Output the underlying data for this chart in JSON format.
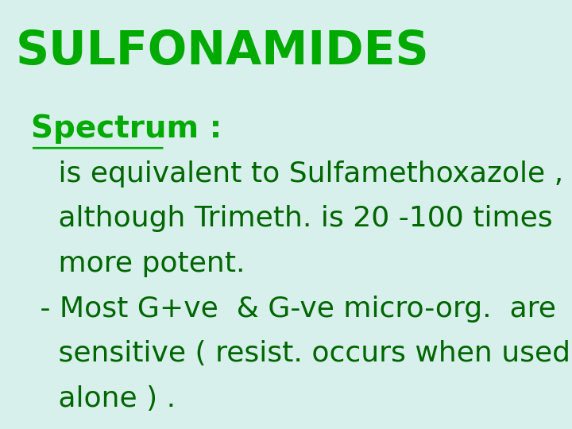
{
  "title": "SULFONAMIDES",
  "title_color": "#00aa00",
  "title_fontsize": 42,
  "background_color": "#d8f0ec",
  "spectrum_label": "Spectrum :",
  "spectrum_color": "#00aa00",
  "spectrum_fontsize": 28,
  "body_color": "#006600",
  "body_fontsize": 26,
  "line1": "   is equivalent to Sulfamethoxazole ,",
  "line2": "   although Trimeth. is 20 -100 times",
  "line3": "   more potent.",
  "line4": " - Most G+ve  & G-ve micro-org.  are",
  "line5": "   sensitive ( resist. occurs when used",
  "line6": "   alone ) ."
}
